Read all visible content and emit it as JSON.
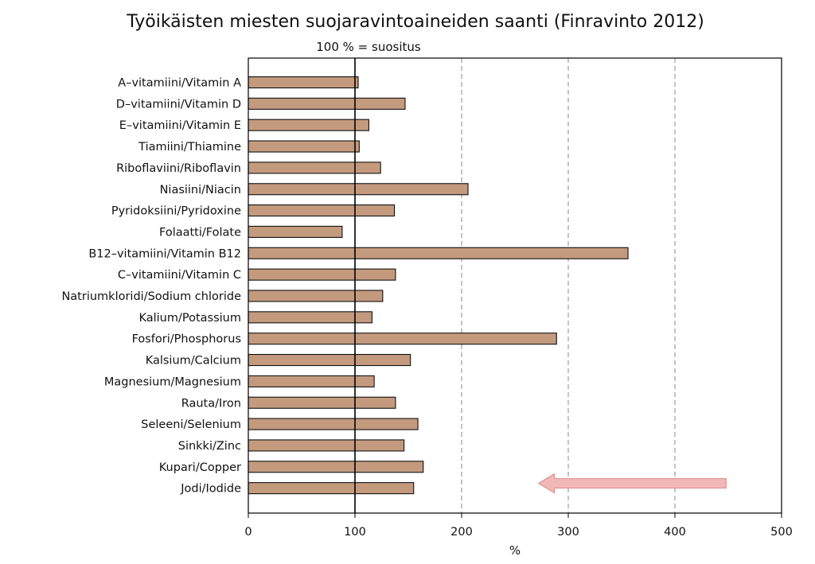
{
  "chart_data": {
    "type": "bar",
    "orientation": "horizontal",
    "title": "Työikäisten miesten suojaravintoaineiden saanti (Finravinto 2012)",
    "subtitle": "100 % = suositus",
    "xlabel": "%",
    "xlim": [
      0,
      500
    ],
    "xticks": [
      "0",
      "100",
      "200",
      "300",
      "400",
      "500"
    ],
    "reference_line": 100,
    "gridlines": [
      200,
      300,
      400
    ],
    "bar_color": "#c49a7e",
    "categories": [
      "A–vitamiini/Vitamin A",
      "D–vitamiini/Vitamin D",
      "E–vitamiini/Vitamin E",
      "Tiamiini/Thiamine",
      "Riboflaviini/Riboflavin",
      "Niasiini/Niacin",
      "Pyridoksiini/Pyridoxine",
      "Folaatti/Folate",
      "B12–vitamiini/Vitamin B12",
      "C–vitamiini/Vitamin C",
      "Natriumkloridi/Sodium chloride",
      "Kalium/Potassium",
      "Fosfori/Phosphorus",
      "Kalsium/Calcium",
      "Magnesium/Magnesium",
      "Rauta/Iron",
      "Seleeni/Selenium",
      "Sinkki/Zinc",
      "Kupari/Copper",
      "Jodi/Iodide"
    ],
    "values": [
      103,
      147,
      113,
      104,
      124,
      206,
      137,
      88,
      356,
      138,
      126,
      116,
      289,
      152,
      118,
      138,
      159,
      146,
      164,
      155
    ],
    "annotation_arrow": {
      "from": 448,
      "to": 272,
      "color": "#f2b7b7"
    }
  }
}
